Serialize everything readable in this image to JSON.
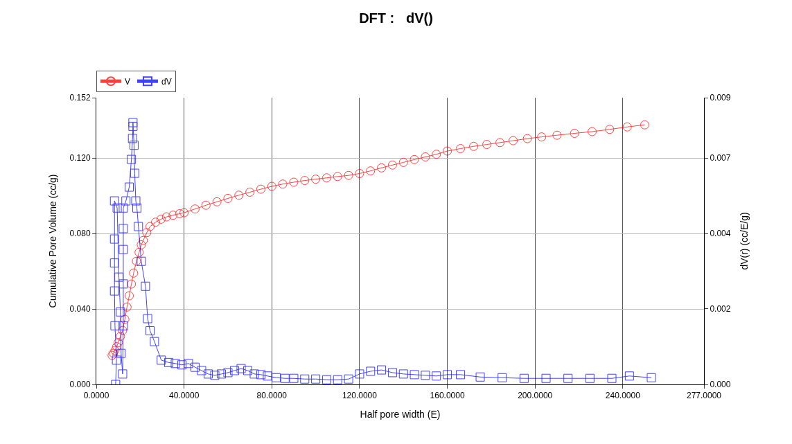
{
  "chart_data": {
    "type": "line",
    "title": "DFT :   dV()",
    "xlabel": "Half pore width (E)",
    "ylabel": "Cumulative Pore Volume (cc/g)",
    "y2label": "dV(r) (cc/E/g)",
    "xlim": [
      0,
      277
    ],
    "xticks": [
      {
        "value": 0,
        "label": "0.0000"
      },
      {
        "value": 40,
        "label": "40.0000"
      },
      {
        "value": 80,
        "label": "80.0000"
      },
      {
        "value": 120,
        "label": "120.0000"
      },
      {
        "value": 160,
        "label": "160.0000"
      },
      {
        "value": 200,
        "label": "200.0000"
      },
      {
        "value": 240,
        "label": "240.0000"
      },
      {
        "value": 277,
        "label": "277.0000"
      }
    ],
    "ylim": [
      0,
      0.152
    ],
    "yticks": [
      {
        "value": 0,
        "label": "0.000"
      },
      {
        "value": 0.04,
        "label": "0.040"
      },
      {
        "value": 0.08,
        "label": "0.080"
      },
      {
        "value": 0.12,
        "label": "0.120"
      },
      0.152
    ],
    "y2lim": [
      0,
      0.0085
    ],
    "y2ticks": [
      {
        "value": 0,
        "label": "0.000"
      },
      {
        "value": 0.00224,
        "label": "0.002"
      },
      {
        "value": 0.00447,
        "label": "0.004"
      },
      {
        "value": 0.00671,
        "label": "0.007"
      },
      {
        "value": 0.0085,
        "label": "0.009"
      }
    ],
    "grid": true,
    "legend": "top left",
    "line_style": "solid",
    "series": [
      {
        "name": "V",
        "color": "#ff0000",
        "marker": "circle",
        "x": [
          7.2,
          7.8,
          8.5,
          9.3,
          10,
          11,
          12,
          13,
          14,
          15,
          16,
          17,
          18.3,
          19.5,
          20.5,
          21.4,
          23,
          24.5,
          27,
          29.5,
          32,
          35,
          38,
          40,
          45,
          50,
          55,
          60,
          65,
          70,
          75,
          80,
          85,
          90,
          95,
          100,
          105,
          110,
          115,
          120,
          125,
          130,
          135,
          140,
          145,
          150,
          155,
          160,
          166,
          172,
          178,
          184,
          190,
          196.5,
          203,
          210,
          218,
          226,
          234,
          242,
          250
        ],
        "values": [
          0.0154,
          0.0165,
          0.018,
          0.02,
          0.0222,
          0.0255,
          0.0286,
          0.0345,
          0.041,
          0.047,
          0.0532,
          0.059,
          0.0653,
          0.07,
          0.074,
          0.0763,
          0.0805,
          0.0837,
          0.086,
          0.0876,
          0.0888,
          0.0897,
          0.0905,
          0.091,
          0.093,
          0.095,
          0.0968,
          0.0986,
          0.1003,
          0.1019,
          0.1035,
          0.105,
          0.1062,
          0.1072,
          0.1081,
          0.1088,
          0.1095,
          0.1102,
          0.1108,
          0.1118,
          0.1132,
          0.1148,
          0.1163,
          0.1177,
          0.1192,
          0.1206,
          0.122,
          0.1237,
          0.125,
          0.1262,
          0.1272,
          0.1282,
          0.1292,
          0.1303,
          0.1312,
          0.1321,
          0.1331,
          0.134,
          0.1352,
          0.1365,
          0.1376
        ]
      },
      {
        "name": "dV",
        "color": "#0000ff",
        "marker": "square",
        "axis": "y2",
        "x": [
          8.8,
          9.2,
          8.5,
          8.3,
          8.3,
          8.3,
          8.3,
          9.5,
          10.3,
          11,
          11.3,
          12,
          12.3,
          12.3,
          12.3,
          12.3,
          12.3,
          13.5,
          15,
          16,
          16.5,
          16.7,
          16.7,
          17.2,
          17.5,
          18,
          18.5,
          19.2,
          20.5,
          22.4,
          23.4,
          24.5,
          26.5,
          29.6,
          33,
          36,
          39,
          42,
          45,
          48,
          51,
          54,
          57,
          60,
          63,
          66,
          69,
          72,
          75,
          78,
          82,
          86,
          90,
          95,
          100,
          105,
          110,
          115,
          120,
          125,
          130,
          135,
          140,
          145,
          150,
          155,
          160,
          166,
          175,
          185,
          195,
          205,
          215,
          225,
          235,
          243,
          253
        ],
        "values": [
          0,
          0.00072,
          0.00174,
          0.00277,
          0.0036,
          0.00431,
          0.00544,
          0.00523,
          0.00318,
          0.00215,
          0.00092,
          0.00031,
          0.00174,
          0.00298,
          0.004,
          0.00462,
          0.00523,
          0.00544,
          0.00585,
          0.00667,
          0.00729,
          0.00765,
          0.00776,
          0.00709,
          0.00626,
          0.00544,
          0.00523,
          0.00468,
          0.00365,
          0.00291,
          0.00195,
          0.00159,
          0.00127,
          0.00072,
          0.00065,
          0.00062,
          0.00058,
          0.00062,
          0.00051,
          0.00041,
          0.00031,
          0.00027,
          0.00031,
          0.00035,
          0.00041,
          0.00047,
          0.00041,
          0.00031,
          0.00029,
          0.00025,
          0.0002,
          0.00018,
          0.00018,
          0.00016,
          0.00016,
          0.00014,
          0.00014,
          0.00016,
          0.00031,
          0.00039,
          0.00043,
          0.00035,
          0.00031,
          0.00029,
          0.00027,
          0.00025,
          0.00029,
          0.00029,
          0.00022,
          0.0002,
          0.00018,
          0.00018,
          0.00018,
          0.00018,
          0.00018,
          0.00025,
          0.0002
        ]
      }
    ]
  }
}
